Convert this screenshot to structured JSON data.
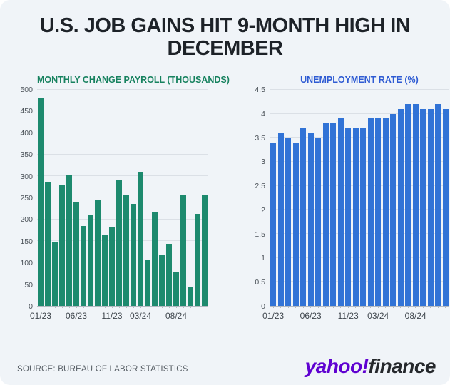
{
  "title_line1": "U.S. JOB GAINS HIT 9-MONTH HIGH IN",
  "title_line2": "DECEMBER",
  "source": "SOURCE: BUREAU OF LABOR STATISTICS",
  "logo": {
    "yahoo": "yahoo",
    "bang": "!",
    "finance": "finance",
    "purple": "#5f01d1",
    "dark": "#25282c"
  },
  "colors": {
    "background": "#f0f4f8",
    "title_text": "#1d2228",
    "axis_labels": "#454c53",
    "gridline": "#dbe0e6",
    "baseline": "#b3b9c1",
    "payroll_green": "#1d8a6e",
    "unemployment_blue": "#3173d6"
  },
  "chart_data": [
    {
      "type": "bar",
      "title": "MONTHLY CHANGE PAYROLL (THOUSANDS)",
      "title_color": "#17825f",
      "bar_color": "#1d8a6e",
      "categories": [
        "01/23",
        "02/23",
        "03/23",
        "04/23",
        "05/23",
        "06/23",
        "07/23",
        "08/23",
        "09/23",
        "10/23",
        "11/23",
        "12/23",
        "01/24",
        "02/24",
        "03/24",
        "04/24",
        "05/24",
        "06/24",
        "07/24",
        "08/24",
        "09/24",
        "10/24",
        "11/24",
        "12/24"
      ],
      "values": [
        482,
        287,
        146,
        278,
        303,
        240,
        184,
        210,
        246,
        165,
        182,
        290,
        256,
        236,
        310,
        108,
        216,
        118,
        144,
        78,
        255,
        43,
        212,
        256
      ],
      "xlabel": "",
      "ylabel": "",
      "ylim": [
        0,
        500
      ],
      "yticks": [
        0,
        50,
        100,
        150,
        200,
        250,
        300,
        350,
        400,
        450,
        500
      ],
      "ytick_labels": [
        "0",
        "50",
        "100",
        "150",
        "200",
        "250",
        "300",
        "350",
        "400",
        "450",
        "500"
      ],
      "xtick_labels": [
        "01/23",
        "06/23",
        "11/23",
        "03/24",
        "08/24"
      ],
      "xtick_indices": [
        0,
        5,
        10,
        14,
        19
      ],
      "grid": true,
      "legend": "none"
    },
    {
      "type": "bar",
      "title": "UNEMPLOYMENT RATE (%)",
      "title_color": "#2e5bd3",
      "bar_color": "#3173d6",
      "categories": [
        "01/23",
        "02/23",
        "03/23",
        "04/23",
        "05/23",
        "06/23",
        "07/23",
        "08/23",
        "09/23",
        "10/23",
        "11/23",
        "12/23",
        "01/24",
        "02/24",
        "03/24",
        "04/24",
        "05/24",
        "06/24",
        "07/24",
        "08/24",
        "09/24",
        "10/24",
        "11/24",
        "12/24"
      ],
      "values": [
        3.4,
        3.6,
        3.5,
        3.4,
        3.7,
        3.6,
        3.5,
        3.8,
        3.8,
        3.9,
        3.7,
        3.7,
        3.7,
        3.9,
        3.9,
        3.9,
        4.0,
        4.1,
        4.2,
        4.2,
        4.1,
        4.1,
        4.2,
        4.1
      ],
      "xlabel": "",
      "ylabel": "",
      "ylim": [
        0,
        4.5
      ],
      "yticks": [
        0,
        0.5,
        1,
        1.5,
        2,
        2.5,
        3,
        3.5,
        4,
        4.5
      ],
      "ytick_labels": [
        "0",
        "0.5",
        "1",
        "1.5",
        "2",
        "2.5",
        "3",
        "3.5",
        "4",
        "4.5"
      ],
      "xtick_labels": [
        "01/23",
        "06/23",
        "11/23",
        "03/24",
        "08/24"
      ],
      "xtick_indices": [
        0,
        5,
        10,
        14,
        19
      ],
      "grid": true,
      "legend": "none"
    }
  ]
}
